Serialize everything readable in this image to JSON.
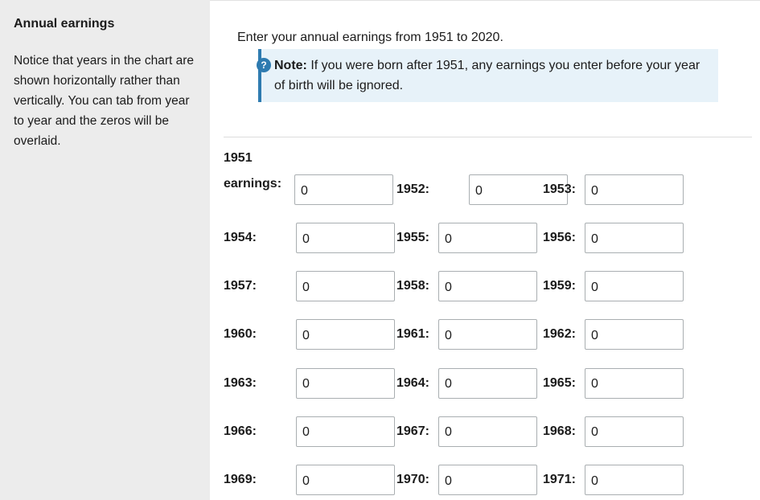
{
  "sidebar": {
    "title": "Annual earnings",
    "description": "Notice that years in the chart are shown horizontally rather than vertically. You can tab from year to year and the zeros will be overlaid."
  },
  "main": {
    "intro": "Enter your annual earnings from 1951 to 2020.",
    "note": {
      "icon": "?",
      "label": "Note:",
      "text": " If you were born after 1951, any earnings you enter before your year of birth will be ignored."
    }
  },
  "earnings": {
    "first_label_year": "1951",
    "first_label_word": "earnings:",
    "rows": [
      [
        {
          "label": "1952:",
          "value": "0"
        },
        {
          "label": "1953:",
          "value": "0"
        }
      ],
      [
        {
          "label": "1954:",
          "value": "0"
        },
        {
          "label": "1955:",
          "value": "0"
        },
        {
          "label": "1956:",
          "value": "0"
        }
      ],
      [
        {
          "label": "1957:",
          "value": "0"
        },
        {
          "label": "1958:",
          "value": "0"
        },
        {
          "label": "1959:",
          "value": "0"
        }
      ],
      [
        {
          "label": "1960:",
          "value": "0"
        },
        {
          "label": "1961:",
          "value": "0"
        },
        {
          "label": "1962:",
          "value": "0"
        }
      ],
      [
        {
          "label": "1963:",
          "value": "0"
        },
        {
          "label": "1964:",
          "value": "0"
        },
        {
          "label": "1965:",
          "value": "0"
        }
      ],
      [
        {
          "label": "1966:",
          "value": "0"
        },
        {
          "label": "1967:",
          "value": "0"
        },
        {
          "label": "1968:",
          "value": "0"
        }
      ],
      [
        {
          "label": "1969:",
          "value": "0"
        },
        {
          "label": "1970:",
          "value": "0"
        },
        {
          "label": "1971:",
          "value": "0"
        }
      ]
    ],
    "first_value": "0"
  }
}
